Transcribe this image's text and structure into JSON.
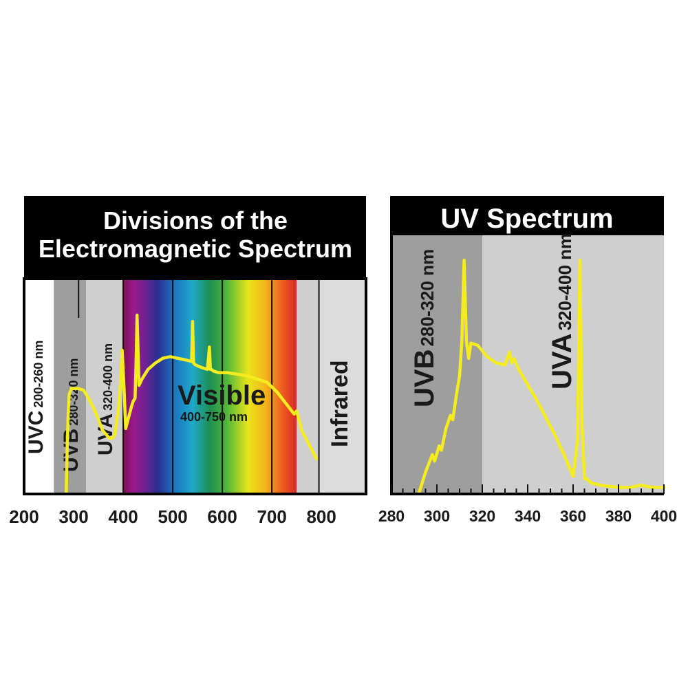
{
  "chart_data": [
    {
      "type": "line",
      "title": "Divisions of the\nElectromagnetic Spectrum",
      "xlabel": "",
      "ylabel": "",
      "xlim": [
        200,
        890
      ],
      "x_ticks": [
        "200",
        "300",
        "400",
        "500",
        "600",
        "700",
        "800"
      ],
      "regions": [
        {
          "label": "UVC",
          "range": "200-260 nm",
          "from": 200,
          "to": 260,
          "fill": "#ffffff"
        },
        {
          "label": "UVB",
          "range": "280-320 nm",
          "from": 260,
          "to": 325,
          "fill": "#9e9e9e"
        },
        {
          "label": "UVA",
          "range": "320-400 nm",
          "from": 325,
          "to": 400,
          "fill": "#cfcfcf"
        },
        {
          "label": "Visible",
          "range": "400-750 nm",
          "from": 400,
          "to": 750,
          "fill": "spectrum"
        },
        {
          "label": "",
          "range": "",
          "from": 750,
          "to": 795,
          "fill": "#cfcfcf"
        },
        {
          "label": "Infrared",
          "range": "",
          "from": 795,
          "to": 890,
          "fill": "#dcdcdc"
        }
      ],
      "series": [
        {
          "x": [
            285,
            287,
            289,
            291,
            295,
            300,
            310,
            320,
            330,
            340,
            350,
            358,
            366,
            372,
            378,
            383,
            386,
            391,
            395,
            398,
            402,
            405,
            410,
            417,
            420,
            424,
            426,
            428,
            432,
            438,
            450,
            465,
            480,
            495,
            510,
            525,
            538,
            540,
            542,
            545,
            552,
            560,
            570,
            574,
            576,
            578,
            582,
            592,
            610,
            630,
            650,
            670,
            690,
            710,
            730,
            745,
            750,
            755,
            760,
            770,
            780,
            790
          ],
          "y": [
            0,
            30,
            50,
            62,
            66,
            66,
            66,
            65,
            60,
            54,
            47,
            40,
            37,
            35,
            35,
            37,
            44,
            55,
            72,
            90,
            64,
            41,
            47,
            55,
            58,
            60,
            82,
            112,
            68,
            72,
            78,
            82,
            85,
            86,
            85,
            84,
            83,
            108,
            82,
            81,
            80,
            79,
            78,
            92,
            78,
            78,
            77,
            76,
            76,
            75,
            74,
            72,
            70,
            64,
            56,
            50,
            52,
            46,
            40,
            34,
            28,
            22
          ]
        }
      ]
    },
    {
      "type": "line",
      "title": "UV Spectrum",
      "xlabel": "",
      "ylabel": "",
      "xlim": [
        280,
        400
      ],
      "x_ticks": [
        "280",
        "300",
        "320",
        "340",
        "360",
        "380",
        "400"
      ],
      "regions": [
        {
          "label": "UVB",
          "range": "280-320 nm",
          "from": 280,
          "to": 320,
          "fill": "#9e9e9e"
        },
        {
          "label": "UVA",
          "range": "320-400 nm",
          "from": 320,
          "to": 400,
          "fill": "#cfcfcf"
        }
      ],
      "series": [
        {
          "x": [
            292,
            295,
            298,
            299,
            301,
            302,
            304,
            306,
            307,
            309,
            310,
            311,
            312,
            313,
            314,
            315,
            318,
            322,
            326,
            330,
            332,
            333,
            334,
            336,
            340,
            344,
            348,
            352,
            356,
            360,
            362,
            363,
            364,
            365,
            366,
            368,
            372,
            380,
            385,
            390,
            395,
            400
          ],
          "y": [
            0,
            10,
            18,
            15,
            22,
            20,
            30,
            36,
            34,
            48,
            54,
            70,
            107,
            70,
            62,
            69,
            68,
            63,
            60,
            59,
            65,
            60,
            62,
            57,
            50,
            43,
            35,
            27,
            18,
            8,
            25,
            107,
            30,
            7,
            7,
            5,
            4,
            3,
            3,
            4,
            3,
            3
          ]
        }
      ]
    }
  ]
}
